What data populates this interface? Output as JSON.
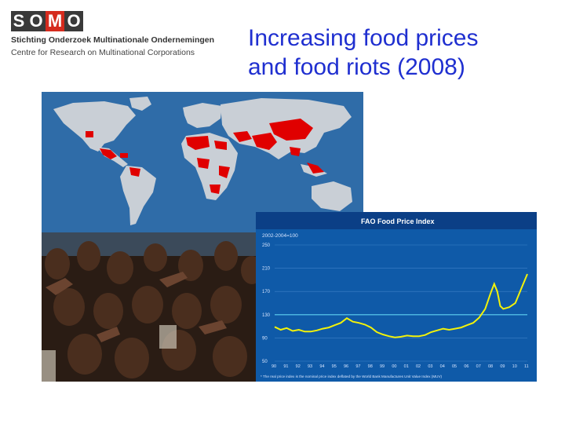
{
  "logo": {
    "letters": [
      "S",
      "O",
      "M",
      "O"
    ],
    "line1": "Stichting Onderzoek Multinationale Ondernemingen",
    "line2": "Centre for Research on Multinational Corporations"
  },
  "title": {
    "line1": "Increasing food prices",
    "line2": "and food riots (2008)"
  },
  "colors": {
    "title": "#1f2fd0",
    "logo_red": "#d52b1e",
    "map_ocean": "#2f6ca8",
    "map_land": "#c9cfd6",
    "riot_red": "#e00000",
    "chart_bg": "#0f5aa8",
    "chart_line": "#f2f20a"
  },
  "fao_chart": {
    "title": "FAO Food Price Index",
    "unit_label": "2002-2004=100",
    "footnote": "* The real price index is the nominal price index deflated by the World Bank Manufactures Unit Value Index (MUV)",
    "y_ticks": [
      "250",
      "210",
      "170",
      "130",
      "90",
      "50"
    ],
    "x_ticks": [
      "90",
      "91",
      "92",
      "93",
      "94",
      "95",
      "96",
      "97",
      "98",
      "99",
      "00",
      "01",
      "02",
      "03",
      "04",
      "05",
      "06",
      "07",
      "08",
      "09",
      "10",
      "11"
    ]
  },
  "chart_data": {
    "type": "line",
    "title": "FAO Food Price Index",
    "ylabel": "2002-2004=100",
    "xlabel": "",
    "ylim": [
      50,
      250
    ],
    "x": [
      "90",
      "90.5",
      "91",
      "91.5",
      "92",
      "92.5",
      "93",
      "93.5",
      "94",
      "94.5",
      "95",
      "95.5",
      "96",
      "96.5",
      "97",
      "97.5",
      "98",
      "98.5",
      "99",
      "99.5",
      "00",
      "00.5",
      "01",
      "01.5",
      "02",
      "02.5",
      "03",
      "03.5",
      "04",
      "04.5",
      "05",
      "05.5",
      "06",
      "06.5",
      "07",
      "07.5",
      "08",
      "08.25",
      "08.5",
      "08.75",
      "09",
      "09.5",
      "10",
      "10.5",
      "11"
    ],
    "series": [
      {
        "values": [
          109,
          104,
          107,
          102,
          104,
          101,
          101,
          103,
          106,
          108,
          112,
          116,
          124,
          118,
          116,
          113,
          108,
          100,
          96,
          93,
          91,
          92,
          94,
          93,
          93,
          95,
          100,
          103,
          106,
          104,
          106,
          108,
          112,
          116,
          125,
          140,
          170,
          183,
          170,
          145,
          140,
          143,
          150,
          175,
          200
        ]
      }
    ],
    "reference_line": 130,
    "grid": true
  }
}
